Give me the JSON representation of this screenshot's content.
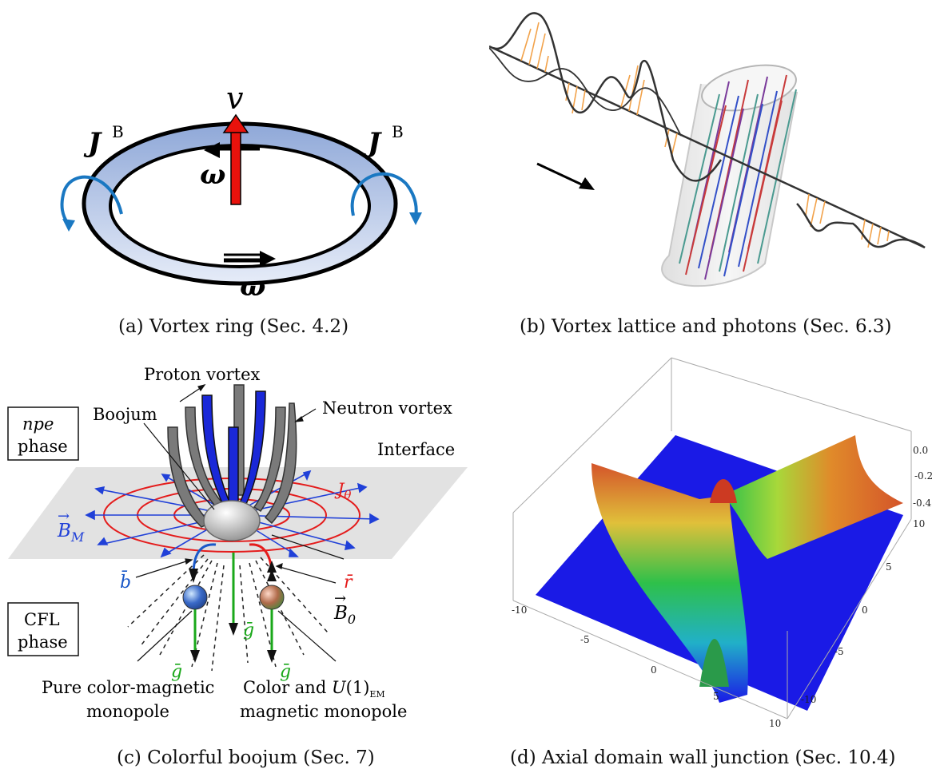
{
  "captions": {
    "a": "(a) Vortex ring (Sec. 4.2)",
    "b": "(b) Vortex lattice and photons (Sec. 6.3)",
    "c": "(c) Colorful boojum (Sec. 7)",
    "d": "(d) Axial domain wall junction (Sec. 10.4)"
  },
  "panel_a": {
    "v": "v",
    "j_left": "J",
    "j_right": "J",
    "j_sup": "B",
    "omega_top": "ω",
    "omega_bottom": "ω"
  },
  "panel_c": {
    "proton_vortex": "Proton vortex",
    "neutron_vortex": "Neutron vortex",
    "boojum": "Boojum",
    "interface": "Interface",
    "npe": "npe",
    "npe_phase": "phase",
    "cfl": "CFL",
    "cfl_phase": "phase",
    "j_theta": "J",
    "j_theta_sub": "θ",
    "b_m": "B",
    "b_m_sub": "M",
    "b_bar": "b̄",
    "r_bar": "r̄",
    "g_bar_1": "ḡ",
    "g_bar_2": "ḡ",
    "g_bar_3": "ḡ",
    "b0": "B",
    "b0_sub": "0",
    "pure_1": "Pure color-magnetic",
    "pure_2": "monopole",
    "color_1a": "Color and ",
    "color_1b": "U",
    "color_1c": "(1)",
    "color_1d": "EM",
    "color_2": "magnetic monopole"
  },
  "panel_d": {
    "z_ticks": [
      "0.0",
      "-0.2",
      "-0.4"
    ],
    "x_ticks": [
      "-10",
      "-5",
      "0",
      "5",
      "10"
    ],
    "y_ticks": [
      "10",
      "5",
      "0",
      "-5",
      "-10"
    ]
  }
}
